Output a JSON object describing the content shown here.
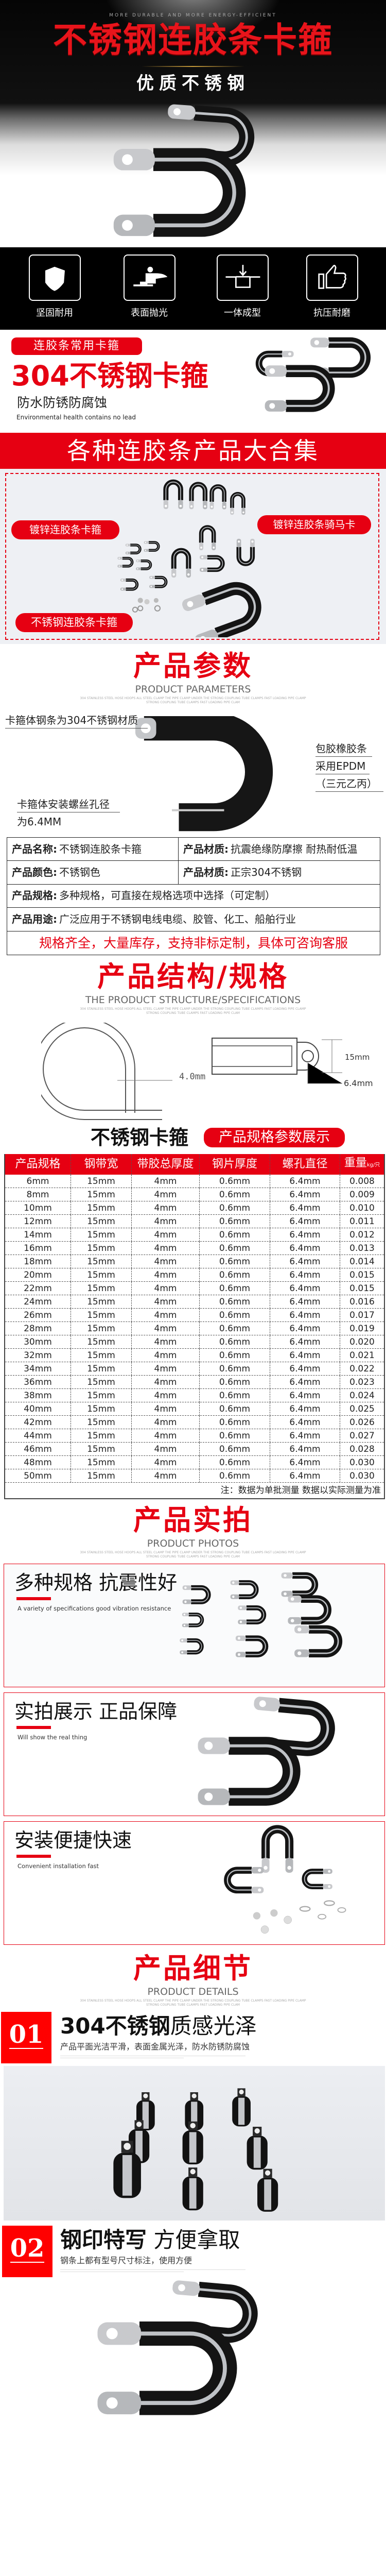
{
  "hero": {
    "tagline": "MORE DURABLE AND MORE ENERGY-EFFICIENT",
    "title": "不锈钢连胶条卡箍",
    "subtitle": "优质不锈钢"
  },
  "features": [
    {
      "label": "坚固耐用",
      "icon": "shield-icon"
    },
    {
      "label": "表面抛光",
      "icon": "polisher-icon"
    },
    {
      "label": "一体成型",
      "icon": "mold-icon"
    },
    {
      "label": "抗压耐磨",
      "icon": "thumbs-up-icon"
    }
  ],
  "intro": {
    "badge": "连胶条常用卡箍",
    "title": "304不锈钢卡箍",
    "subtitle": "防水防锈防腐蚀",
    "subtitle_en": "Environmental health contains no lead"
  },
  "collection": {
    "banner": "各种连胶条产品大合集",
    "label_galvanized_clamp": "镀锌连胶条卡箍",
    "label_galvanized_saddle": "镀锌连胶条骑马卡",
    "label_stainless_clamp": "不锈钢连胶条卡箍"
  },
  "fine_print": "304 STAINLESS STEEL HOSE HOOPS ALL STEEL CLAMP THE PIPE CLAMP UNDER THE STRONG COUPLING TUBE CLAMPS FAST LOADING PIPE CLAMP STRONG COUPLING TUBE CLAMPS FAST LOADING PIPE CLAM",
  "params": {
    "title": "产品参数",
    "title_en": "PRODUCT PARAMETERS",
    "callout_steel": "卡箍体钢条为304不锈钢材质",
    "callout_rubber_1": "包胶橡胶条",
    "callout_rubber_2": "采用EPDM",
    "callout_rubber_3": "（三元乙丙）",
    "callout_hole_1": "卡箍体安装螺丝孔径",
    "callout_hole_2": "为6.4MM"
  },
  "info_table": {
    "name_key": "产品名称:",
    "name_val": "不锈钢连胶条卡箍",
    "material_key": "产品材质:",
    "material_val": "抗震绝缘防摩擦 耐热耐低温",
    "color_key": "产品颜色:",
    "color_val": "不锈钢色",
    "material2_key": "产品材质:",
    "material2_val": "正宗304不锈钢",
    "spec_key": "产品规格:",
    "spec_val": "多种规格，可直接在规格选项中选择（可定制）",
    "use_key": "产品用途:",
    "use_val": "广泛应用于不锈钢电线电缆、胶管、化工、船舶行业",
    "notice": "规格齐全，大量库存，支持非标定制，具体可咨询客服"
  },
  "structure": {
    "title": "产品结构/规格",
    "title_en": "THE PRODUCT STRUCTURE/SPECIFICATIONS",
    "dim_thickness": "4.0mm",
    "dim_width": "15mm",
    "dim_hole": "6.4mm"
  },
  "spec": {
    "product": "不锈钢卡箍",
    "badge": "产品规格参数展示",
    "headers": [
      "产品规格",
      "钢带宽",
      "带胶总厚度",
      "钢片厚度",
      "螺孔直径",
      "重量"
    ],
    "weight_unit": "kg/只",
    "rows": [
      [
        "6mm",
        "15mm",
        "4mm",
        "0.6mm",
        "6.4mm",
        "0.008"
      ],
      [
        "8mm",
        "15mm",
        "4mm",
        "0.6mm",
        "6.4mm",
        "0.009"
      ],
      [
        "10mm",
        "15mm",
        "4mm",
        "0.6mm",
        "6.4mm",
        "0.010"
      ],
      [
        "12mm",
        "15mm",
        "4mm",
        "0.6mm",
        "6.4mm",
        "0.011"
      ],
      [
        "14mm",
        "15mm",
        "4mm",
        "0.6mm",
        "6.4mm",
        "0.012"
      ],
      [
        "16mm",
        "15mm",
        "4mm",
        "0.6mm",
        "6.4mm",
        "0.013"
      ],
      [
        "18mm",
        "15mm",
        "4mm",
        "0.6mm",
        "6.4mm",
        "0.014"
      ],
      [
        "20mm",
        "15mm",
        "4mm",
        "0.6mm",
        "6.4mm",
        "0.015"
      ],
      [
        "22mm",
        "15mm",
        "4mm",
        "0.6mm",
        "6.4mm",
        "0.015"
      ],
      [
        "24mm",
        "15mm",
        "4mm",
        "0.6mm",
        "6.4mm",
        "0.016"
      ],
      [
        "26mm",
        "15mm",
        "4mm",
        "0.6mm",
        "6.4mm",
        "0.017"
      ],
      [
        "28mm",
        "15mm",
        "4mm",
        "0.6mm",
        "6.4mm",
        "0.019"
      ],
      [
        "30mm",
        "15mm",
        "4mm",
        "0.6mm",
        "6.4mm",
        "0.020"
      ],
      [
        "32mm",
        "15mm",
        "4mm",
        "0.6mm",
        "6.4mm",
        "0.021"
      ],
      [
        "34mm",
        "15mm",
        "4mm",
        "0.6mm",
        "6.4mm",
        "0.022"
      ],
      [
        "36mm",
        "15mm",
        "4mm",
        "0.6mm",
        "6.4mm",
        "0.023"
      ],
      [
        "38mm",
        "15mm",
        "4mm",
        "0.6mm",
        "6.4mm",
        "0.024"
      ],
      [
        "40mm",
        "15mm",
        "4mm",
        "0.6mm",
        "6.4mm",
        "0.025"
      ],
      [
        "42mm",
        "15mm",
        "4mm",
        "0.6mm",
        "6.4mm",
        "0.026"
      ],
      [
        "44mm",
        "15mm",
        "4mm",
        "0.6mm",
        "6.4mm",
        "0.027"
      ],
      [
        "46mm",
        "15mm",
        "4mm",
        "0.6mm",
        "6.4mm",
        "0.028"
      ],
      [
        "48mm",
        "15mm",
        "4mm",
        "0.6mm",
        "6.4mm",
        "0.030"
      ],
      [
        "50mm",
        "15mm",
        "4mm",
        "0.6mm",
        "6.4mm",
        "0.030"
      ]
    ],
    "note": "注：数据为单批测量 数据以实际测量为准"
  },
  "photos": {
    "title": "产品实拍",
    "title_en": "PRODUCT PHOTOS",
    "box1_title": "多种规格 抗震性好",
    "box1_en": "A variety of specifications good vibration resistance",
    "box2_title": "实拍展示 正品保障",
    "box2_en": "Will show the real thing",
    "box3_title": "安装便捷快速",
    "box3_en": "Convenient installation fast"
  },
  "details": {
    "title": "产品细节",
    "title_en": "PRODUCT DETAILS",
    "d1_num": "01",
    "d1_title_bold": "304不锈钢",
    "d1_title_rest": "质感光泽",
    "d1_sub": "产品平面光洁平滑，表面金属光泽，防水防锈防腐蚀",
    "d2_num": "02",
    "d2_title_bold": "钢印特写",
    "d2_title_rest": " 方便拿取",
    "d2_sub": "钢条上都有型号尺寸标注，使用方便"
  },
  "colors": {
    "accent": "#e60012",
    "dark": "#000000"
  }
}
